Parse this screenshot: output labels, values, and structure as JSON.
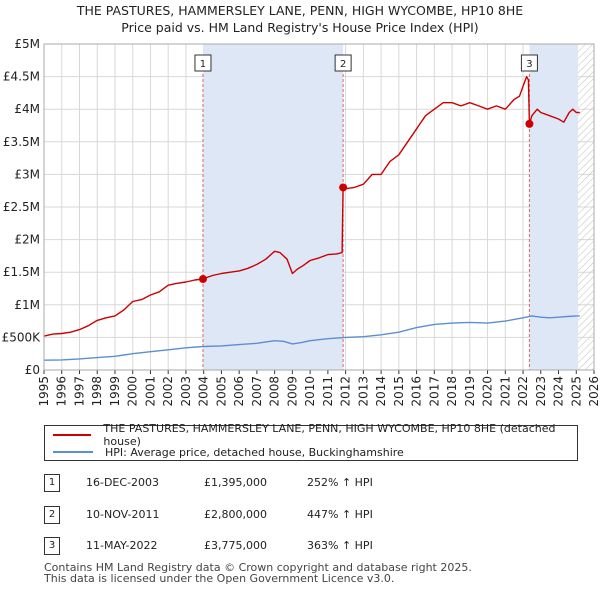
{
  "header": {
    "title_line1": "THE PASTURES, HAMMERSLEY LANE, PENN, HIGH WYCOMBE, HP10 8HE",
    "title_line2": "Price paid vs. HM Land Registry's House Price Index (HPI)"
  },
  "colors": {
    "property_line": "#cc0000",
    "hpi_line": "#5b8fd0",
    "shade": "#dde7f6",
    "hatch": "#cccccc",
    "grid": "#d8d8d8",
    "marker_line": "#e06666"
  },
  "chart_data": {
    "type": "line",
    "xlim": [
      1995,
      2026
    ],
    "ylim": [
      0,
      5000000
    ],
    "ytick_values": [
      0,
      500000,
      1000000,
      1500000,
      2000000,
      2500000,
      3000000,
      3500000,
      4000000,
      4500000,
      5000000
    ],
    "ytick_labels": [
      "£0",
      "£500K",
      "£1M",
      "£1.5M",
      "£2M",
      "£2.5M",
      "£3M",
      "£3.5M",
      "£4M",
      "£4.5M",
      "£5M"
    ],
    "xtick_labels": [
      "1995",
      "1996",
      "1997",
      "1998",
      "1999",
      "2000",
      "2001",
      "2002",
      "2003",
      "2004",
      "2005",
      "2006",
      "2007",
      "2008",
      "2009",
      "2010",
      "2011",
      "2012",
      "2013",
      "2014",
      "2015",
      "2016",
      "2017",
      "2018",
      "2019",
      "2020",
      "2021",
      "2022",
      "2023",
      "2024",
      "2025",
      "2026"
    ],
    "shaded_spans": [
      [
        2003.96,
        2011.86
      ],
      [
        2022.36,
        2025.1
      ]
    ],
    "hatch_start": 2025.1,
    "series": [
      {
        "name": "THE PASTURES, HAMMERSLEY LANE, PENN, HIGH WYCOMBE, HP10 8HE (detached house)",
        "x": [
          1995,
          1995.5,
          1996,
          1996.5,
          1997,
          1997.5,
          1998,
          1998.5,
          1999,
          1999.5,
          2000,
          2000.5,
          2001,
          2001.5,
          2002,
          2002.5,
          2003,
          2003.5,
          2003.96,
          2004.2,
          2004.5,
          2005,
          2005.5,
          2006,
          2006.5,
          2007,
          2007.5,
          2008,
          2008.3,
          2008.7,
          2009,
          2009.3,
          2009.6,
          2010,
          2010.5,
          2011,
          2011.5,
          2011.8,
          2011.86,
          2012,
          2012.5,
          2013,
          2013.5,
          2014,
          2014.5,
          2015,
          2015.5,
          2016,
          2016.5,
          2017,
          2017.5,
          2018,
          2018.5,
          2019,
          2019.5,
          2020,
          2020.5,
          2021,
          2021.5,
          2021.8,
          2022,
          2022.2,
          2022.3,
          2022.36,
          2022.5,
          2022.8,
          2023,
          2023.5,
          2024,
          2024.3,
          2024.6,
          2024.8,
          2025,
          2025.2
        ],
        "values": [
          520000,
          550000,
          560000,
          580000,
          620000,
          680000,
          760000,
          800000,
          830000,
          920000,
          1050000,
          1080000,
          1150000,
          1200000,
          1300000,
          1330000,
          1350000,
          1380000,
          1395000,
          1420000,
          1450000,
          1480000,
          1500000,
          1520000,
          1560000,
          1620000,
          1700000,
          1820000,
          1800000,
          1700000,
          1480000,
          1550000,
          1600000,
          1680000,
          1720000,
          1770000,
          1780000,
          1800000,
          2800000,
          2780000,
          2800000,
          2850000,
          3000000,
          3000000,
          3200000,
          3300000,
          3500000,
          3700000,
          3900000,
          4000000,
          4100000,
          4100000,
          4050000,
          4100000,
          4050000,
          4000000,
          4050000,
          4000000,
          4150000,
          4200000,
          4350000,
          4500000,
          4450000,
          3775000,
          3900000,
          4000000,
          3950000,
          3900000,
          3850000,
          3800000,
          3950000,
          4000000,
          3950000,
          3950000
        ]
      },
      {
        "name": "HPI: Average price, detached house, Buckinghamshire",
        "x": [
          1995,
          1996,
          1997,
          1998,
          1999,
          2000,
          2001,
          2002,
          2003,
          2004,
          2005,
          2006,
          2007,
          2008,
          2008.5,
          2009,
          2009.5,
          2010,
          2011,
          2012,
          2013,
          2014,
          2015,
          2016,
          2017,
          2018,
          2019,
          2020,
          2021,
          2022,
          2022.5,
          2023,
          2023.5,
          2024,
          2024.5,
          2025,
          2025.2
        ],
        "values": [
          150000,
          155000,
          170000,
          190000,
          210000,
          250000,
          280000,
          310000,
          340000,
          360000,
          370000,
          390000,
          410000,
          450000,
          440000,
          400000,
          420000,
          450000,
          480000,
          500000,
          510000,
          540000,
          580000,
          650000,
          700000,
          720000,
          730000,
          720000,
          750000,
          800000,
          830000,
          810000,
          800000,
          810000,
          820000,
          830000,
          830000
        ]
      }
    ],
    "sale_points": [
      {
        "label": "1",
        "x": 2003.96,
        "value": 1395000
      },
      {
        "label": "2",
        "x": 2011.86,
        "value": 2800000
      },
      {
        "label": "3",
        "x": 2022.36,
        "value": 3775000
      }
    ]
  },
  "legend": {
    "property_label": "THE PASTURES, HAMMERSLEY LANE, PENN, HIGH WYCOMBE, HP10 8HE (detached house)",
    "hpi_label": "HPI: Average price, detached house, Buckinghamshire"
  },
  "transactions": [
    {
      "num": "1",
      "date": "16-DEC-2003",
      "price": "£1,395,000",
      "hpi": "252% ↑ HPI"
    },
    {
      "num": "2",
      "date": "10-NOV-2011",
      "price": "£2,800,000",
      "hpi": "447% ↑ HPI"
    },
    {
      "num": "3",
      "date": "11-MAY-2022",
      "price": "£3,775,000",
      "hpi": "363% ↑ HPI"
    }
  ],
  "footer": {
    "line1": "Contains HM Land Registry data © Crown copyright and database right 2025.",
    "line2": "This data is licensed under the Open Government Licence v3.0."
  }
}
